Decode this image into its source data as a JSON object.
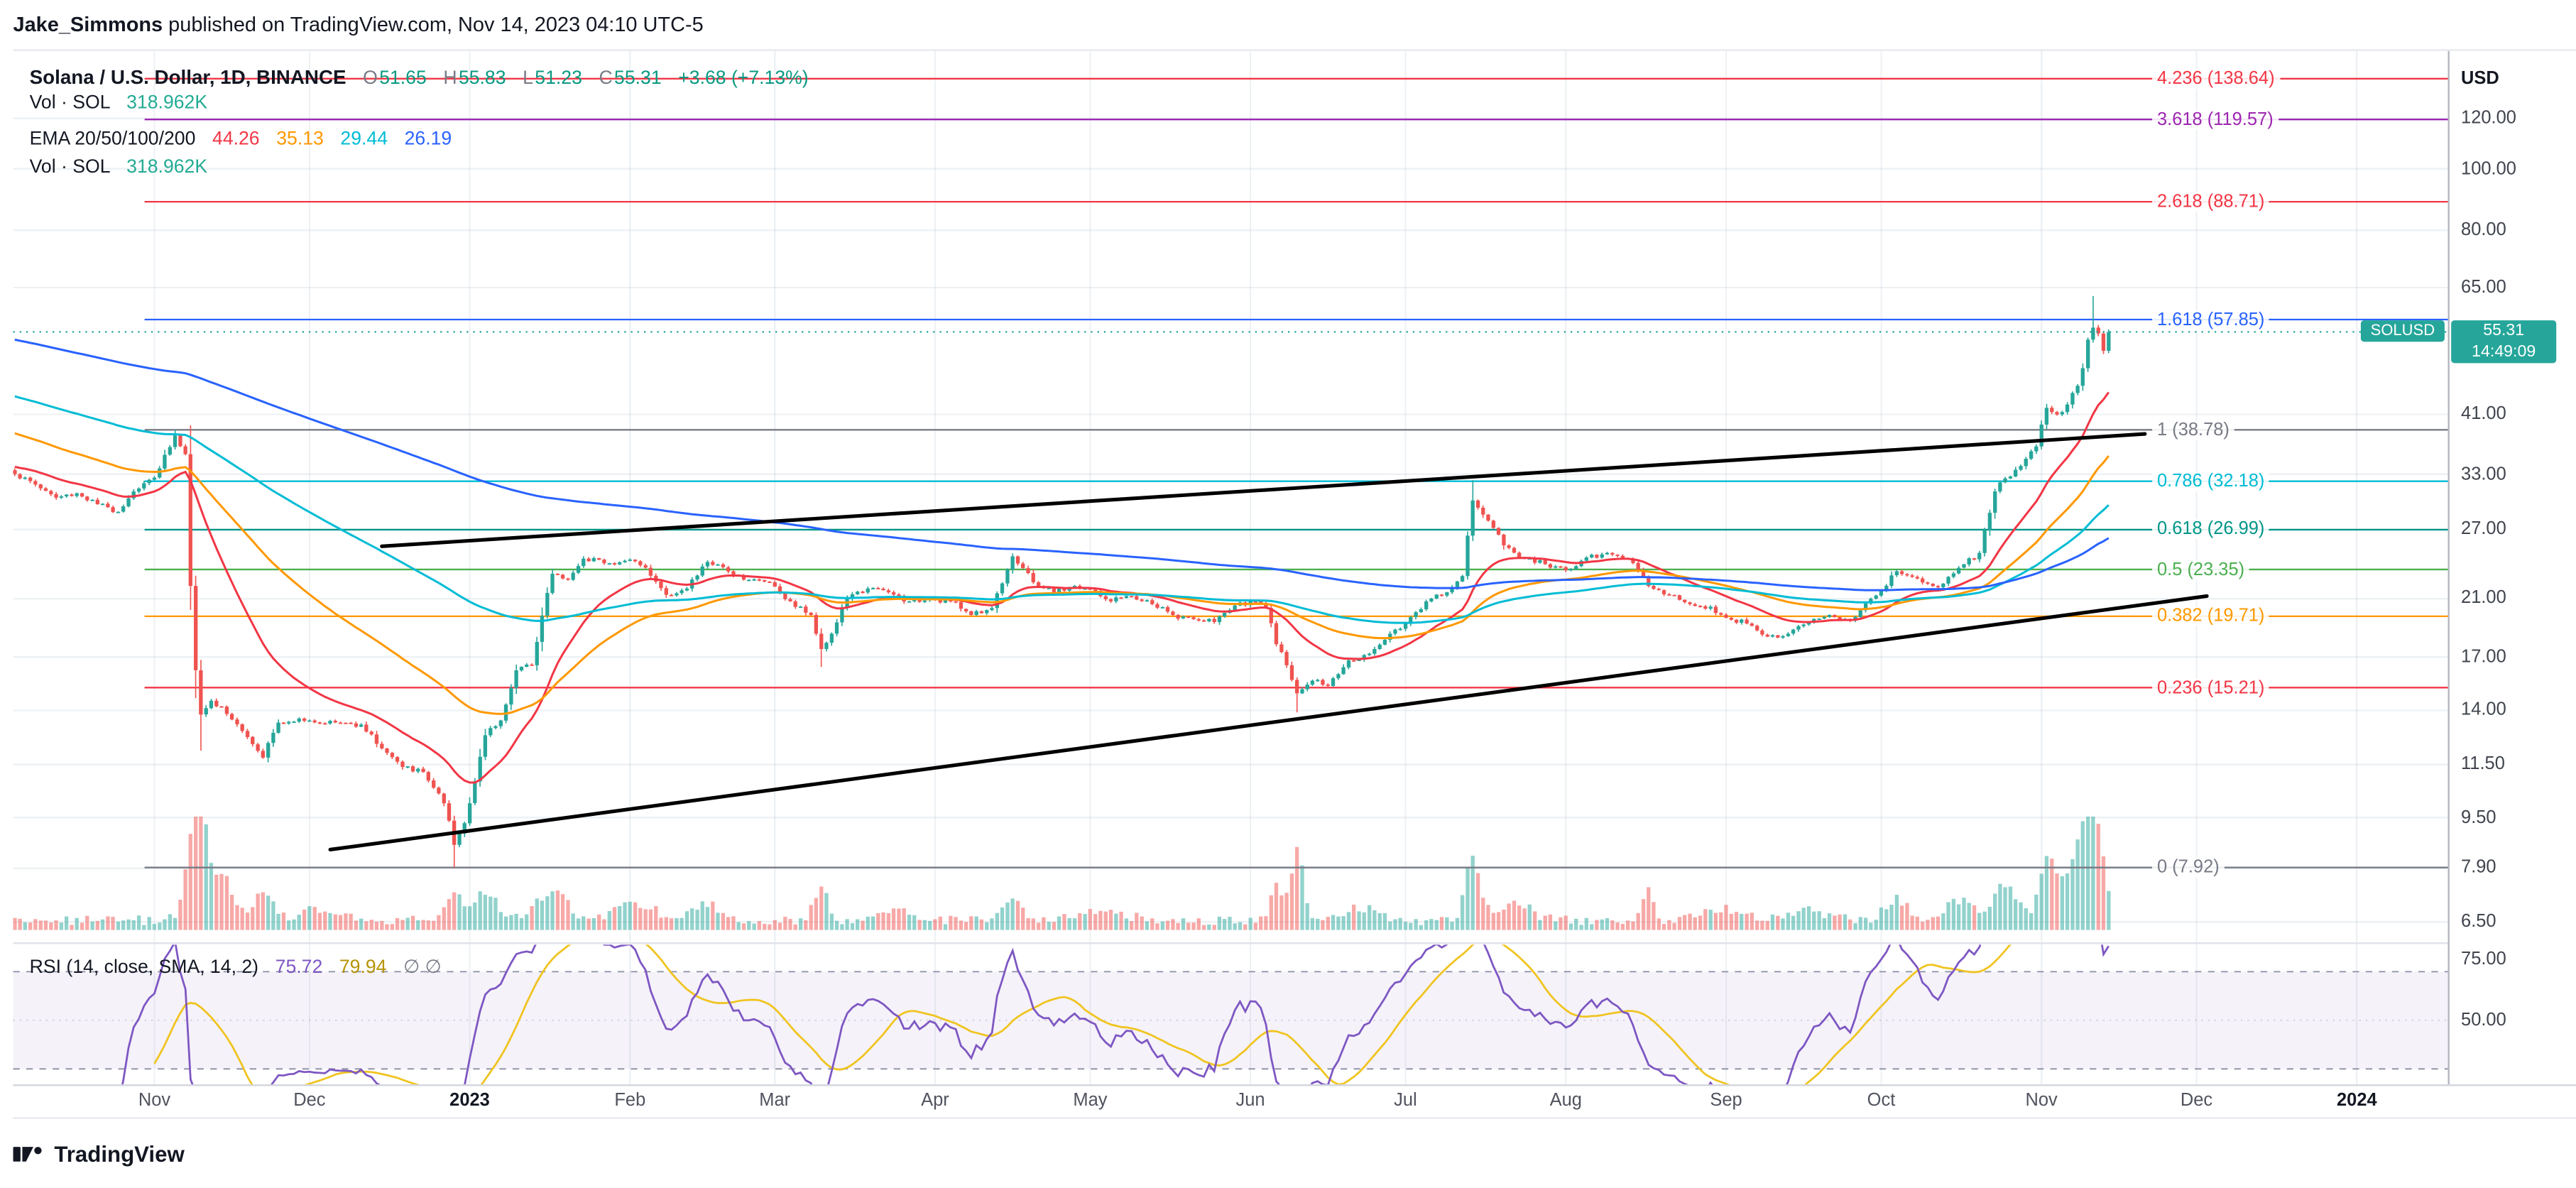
{
  "header": {
    "author": "Jake_Simmons",
    "rest": " published on TradingView.com, Nov 14, 2023 04:10 UTC-5"
  },
  "footer": {
    "brand": "TradingView"
  },
  "legend": {
    "symbol_row": {
      "title": "Solana / U.S. Dollar, 1D, BINANCE",
      "ohlc": [
        {
          "label": "O",
          "value": "51.65"
        },
        {
          "label": "H",
          "value": "55.83"
        },
        {
          "label": "L",
          "value": "51.23"
        },
        {
          "label": "C",
          "value": "55.31"
        }
      ],
      "change": "+3.68 (+7.13%)",
      "value_color": "#089981",
      "label_color": "#787b86"
    },
    "vol_row": {
      "label": "Vol · SOL",
      "value": "318.962K",
      "value_color": "#22ab94"
    },
    "ema_row": {
      "label": "EMA 20/50/100/200",
      "values": [
        "44.26",
        "35.13",
        "29.44",
        "26.19"
      ],
      "colors": [
        "#f23645",
        "#ff9800",
        "#00bcd4",
        "#2962ff"
      ]
    },
    "vol_row2": {
      "label": "Vol · SOL",
      "value": "318.962K",
      "value_color": "#22ab94"
    },
    "rsi_row": {
      "label": "RSI (14, close, SMA, 14, 2)",
      "value": "75.72",
      "sma_value": "79.94",
      "extra": "∅  ∅",
      "colors": [
        "#7e57c2",
        "#b59408"
      ]
    }
  },
  "price_axis": {
    "unit": "USD",
    "ticks": [
      {
        "label": "120.00",
        "value": 120
      },
      {
        "label": "100.00",
        "value": 100
      },
      {
        "label": "80.00",
        "value": 80
      },
      {
        "label": "65.00",
        "value": 65
      },
      {
        "label": "41.00",
        "value": 41
      },
      {
        "label": "33.00",
        "value": 33
      },
      {
        "label": "27.00",
        "value": 27
      },
      {
        "label": "21.00",
        "value": 21
      },
      {
        "label": "17.00",
        "value": 17
      },
      {
        "label": "14.00",
        "value": 14
      },
      {
        "label": "11.50",
        "value": 11.5
      },
      {
        "label": "9.50",
        "value": 9.5
      },
      {
        "label": "7.90",
        "value": 7.9
      },
      {
        "label": "6.50",
        "value": 6.5
      }
    ],
    "badge": {
      "symbol": "SOLUSD",
      "price": "55.31",
      "countdown": "14:49:09",
      "color": "#26a69a"
    }
  },
  "rsi_axis": {
    "ticks": [
      {
        "label": "75.00",
        "value": 75
      },
      {
        "label": "50.00",
        "value": 50
      }
    ]
  },
  "time_axis": {
    "labels": [
      {
        "text": "Nov",
        "day": 27,
        "year": false
      },
      {
        "text": "Dec",
        "day": 57,
        "year": false
      },
      {
        "text": "2023",
        "day": 88,
        "year": true
      },
      {
        "text": "Feb",
        "day": 119,
        "year": false
      },
      {
        "text": "Mar",
        "day": 147,
        "year": false
      },
      {
        "text": "Apr",
        "day": 178,
        "year": false
      },
      {
        "text": "May",
        "day": 208,
        "year": false
      },
      {
        "text": "Jun",
        "day": 239,
        "year": false
      },
      {
        "text": "Jul",
        "day": 269,
        "year": false
      },
      {
        "text": "Aug",
        "day": 300,
        "year": false
      },
      {
        "text": "Sep",
        "day": 331,
        "year": false
      },
      {
        "text": "Oct",
        "day": 361,
        "year": false
      },
      {
        "text": "Nov",
        "day": 392,
        "year": false
      },
      {
        "text": "Dec",
        "day": 422,
        "year": false
      },
      {
        "text": "2024",
        "day": 453,
        "year": true
      }
    ]
  },
  "chart_data": {
    "type": "candlestick",
    "symbol": "Solana / U.S. Dollar",
    "interval": "1D",
    "exchange": "BINANCE",
    "title": "Solana / U.S. Dollar, 1D, BINANCE",
    "last_price": 55.31,
    "last_bar": {
      "open": 51.65,
      "high": 55.83,
      "low": 51.23,
      "close": 55.31,
      "change": "+3.68 (+7.13%)",
      "volume": "318.962K"
    },
    "price_scale": {
      "type": "logarithmic",
      "visible_range": [
        6.2,
        145
      ]
    },
    "colors": {
      "up": "#26a69a",
      "down": "#ef5350",
      "vol_up": "rgba(38,166,154,0.5)",
      "vol_down": "rgba(239,83,80,0.5)",
      "grid": "rgba(150,165,185,0.16)",
      "last_price_line": "#26a69a",
      "rsi_band": "rgba(126,87,194,0.08)"
    },
    "ema": [
      {
        "period": 20,
        "color": "#f23645",
        "seed": 34,
        "last": 44.26
      },
      {
        "period": 50,
        "color": "#ff9800",
        "seed": 38.5,
        "last": 35.13
      },
      {
        "period": 100,
        "color": "#00bcd4",
        "seed": 44,
        "last": 29.44
      },
      {
        "period": 200,
        "color": "#2962ff",
        "seed": 54,
        "last": 26.19
      }
    ],
    "rsi": {
      "period": 14,
      "source": "close",
      "smoothing": 14,
      "color": "#7e57c2",
      "sma_color": "#f0c420",
      "upper_band": 70,
      "middle": 50,
      "lower_band": 30,
      "last": 75.72,
      "sma_last": 79.94
    },
    "fib_levels": [
      {
        "level": 4.236,
        "price": 138.64,
        "label": "4.236 (138.64)",
        "color": "#f23645"
      },
      {
        "level": 3.618,
        "price": 119.57,
        "label": "3.618 (119.57)",
        "color": "#9c27b0"
      },
      {
        "level": 2.618,
        "price": 88.71,
        "label": "2.618 (88.71)",
        "color": "#f23645"
      },
      {
        "level": 1.618,
        "price": 57.85,
        "label": "1.618 (57.85)",
        "color": "#2962ff"
      },
      {
        "level": 1,
        "price": 38.78,
        "label": "1 (38.78)",
        "color": "#787b86"
      },
      {
        "level": 0.786,
        "price": 32.18,
        "label": "0.786 (32.18)",
        "color": "#00bcd4"
      },
      {
        "level": 0.618,
        "price": 26.99,
        "label": "0.618 (26.99)",
        "color": "#009688"
      },
      {
        "level": 0.5,
        "price": 23.35,
        "label": "0.5 (23.35)",
        "color": "#4caf50"
      },
      {
        "level": 0.382,
        "price": 19.71,
        "label": "0.382 (19.71)",
        "color": "#ff9800"
      },
      {
        "level": 0.236,
        "price": 15.21,
        "label": "0.236 (15.21)",
        "color": "#f23645"
      },
      {
        "level": 0,
        "price": 7.92,
        "label": "0 (7.92)",
        "color": "#787b86"
      }
    ],
    "trend_lines": [
      {
        "from": {
          "day": 61,
          "price": 8.45
        },
        "to": {
          "day": 424,
          "price": 21.2
        },
        "color": "#000000",
        "width": 2.2
      },
      {
        "from": {
          "day": 71,
          "price": 25.4
        },
        "to": {
          "day": 412,
          "price": 38.2
        },
        "color": "#000000",
        "width": 2.2
      }
    ],
    "volume": {
      "events": [
        [
          34,
          0.6,
          2
        ],
        [
          36,
          1.0,
          1.8
        ],
        [
          40,
          0.45,
          3
        ],
        [
          48,
          0.25,
          3
        ],
        [
          60,
          0.12,
          6
        ],
        [
          85,
          0.3,
          2
        ],
        [
          91,
          0.28,
          3
        ],
        [
          104,
          0.3,
          4
        ],
        [
          120,
          0.18,
          5
        ],
        [
          134,
          0.15,
          4
        ],
        [
          156,
          0.3,
          2
        ],
        [
          170,
          0.12,
          5
        ],
        [
          193,
          0.25,
          2.5
        ],
        [
          210,
          0.1,
          6
        ],
        [
          244,
          0.4,
          1.5
        ],
        [
          248,
          0.7,
          1.8
        ],
        [
          260,
          0.12,
          5
        ],
        [
          282,
          0.65,
          2
        ],
        [
          290,
          0.2,
          4
        ],
        [
          316,
          0.3,
          1.5
        ],
        [
          330,
          0.12,
          6
        ],
        [
          347,
          0.1,
          5
        ],
        [
          364,
          0.22,
          3
        ],
        [
          376,
          0.2,
          4
        ],
        [
          385,
          0.38,
          3
        ],
        [
          393,
          0.55,
          2
        ],
        [
          397,
          0.4,
          3
        ],
        [
          400,
          0.75,
          2
        ],
        [
          402,
          0.9,
          1.5
        ],
        [
          404,
          0.5,
          1.5
        ]
      ]
    },
    "candles": {
      "days": 406,
      "close_anchors": [
        [
          0,
          33.0
        ],
        [
          4,
          31.8
        ],
        [
          8,
          30.3
        ],
        [
          12,
          30.8
        ],
        [
          16,
          29.6
        ],
        [
          20,
          28.8
        ],
        [
          23,
          31.0
        ],
        [
          27,
          32.6
        ],
        [
          31,
          38.0
        ],
        [
          33,
          35.5
        ],
        [
          34,
          22.0
        ],
        [
          35,
          16.2
        ],
        [
          36,
          13.8
        ],
        [
          38,
          14.5
        ],
        [
          40,
          14.2
        ],
        [
          44,
          13.0
        ],
        [
          48,
          11.8
        ],
        [
          51,
          13.4
        ],
        [
          55,
          13.6
        ],
        [
          57,
          13.5
        ],
        [
          62,
          13.4
        ],
        [
          67,
          13.3
        ],
        [
          71,
          12.2
        ],
        [
          75,
          11.4
        ],
        [
          79,
          11.2
        ],
        [
          83,
          10.0
        ],
        [
          85,
          8.6
        ],
        [
          87,
          9.3
        ],
        [
          88,
          10.0
        ],
        [
          91,
          12.8
        ],
        [
          94,
          13.5
        ],
        [
          97,
          16.2
        ],
        [
          100,
          16.5
        ],
        [
          104,
          23.0
        ],
        [
          107,
          22.5
        ],
        [
          110,
          24.3
        ],
        [
          113,
          24.2
        ],
        [
          116,
          23.8
        ],
        [
          119,
          24.2
        ],
        [
          122,
          23.5
        ],
        [
          126,
          21.3
        ],
        [
          130,
          21.8
        ],
        [
          134,
          24.0
        ],
        [
          138,
          23.2
        ],
        [
          142,
          22.5
        ],
        [
          146,
          22.3
        ],
        [
          150,
          20.8
        ],
        [
          154,
          19.8
        ],
        [
          156,
          17.5
        ],
        [
          158,
          18.5
        ],
        [
          161,
          21.0
        ],
        [
          165,
          21.8
        ],
        [
          169,
          21.5
        ],
        [
          173,
          20.8
        ],
        [
          177,
          21.0
        ],
        [
          181,
          20.8
        ],
        [
          185,
          19.8
        ],
        [
          189,
          20.3
        ],
        [
          193,
          24.5
        ],
        [
          197,
          22.3
        ],
        [
          201,
          21.5
        ],
        [
          205,
          22.0
        ],
        [
          208,
          21.7
        ],
        [
          212,
          20.8
        ],
        [
          216,
          21.2
        ],
        [
          220,
          20.6
        ],
        [
          224,
          19.8
        ],
        [
          228,
          19.5
        ],
        [
          232,
          19.3
        ],
        [
          236,
          20.5
        ],
        [
          239,
          20.8
        ],
        [
          242,
          20.3
        ],
        [
          244,
          17.8
        ],
        [
          246,
          16.5
        ],
        [
          248,
          14.9
        ],
        [
          251,
          15.6
        ],
        [
          254,
          15.3
        ],
        [
          258,
          16.8
        ],
        [
          262,
          17.2
        ],
        [
          266,
          18.5
        ],
        [
          269,
          19.2
        ],
        [
          273,
          20.8
        ],
        [
          277,
          21.5
        ],
        [
          280,
          22.8
        ],
        [
          282,
          30.0
        ],
        [
          284,
          28.5
        ],
        [
          287,
          26.5
        ],
        [
          288,
          25.5
        ],
        [
          292,
          24.3
        ],
        [
          296,
          23.8
        ],
        [
          300,
          23.3
        ],
        [
          304,
          24.4
        ],
        [
          308,
          24.8
        ],
        [
          312,
          24.3
        ],
        [
          316,
          22.0
        ],
        [
          320,
          21.3
        ],
        [
          324,
          20.6
        ],
        [
          328,
          20.4
        ],
        [
          331,
          19.6
        ],
        [
          335,
          19.2
        ],
        [
          339,
          18.3
        ],
        [
          343,
          18.5
        ],
        [
          347,
          19.3
        ],
        [
          351,
          19.8
        ],
        [
          355,
          19.4
        ],
        [
          359,
          21.0
        ],
        [
          361,
          21.6
        ],
        [
          364,
          23.2
        ],
        [
          368,
          22.6
        ],
        [
          372,
          21.9
        ],
        [
          376,
          23.5
        ],
        [
          380,
          24.8
        ],
        [
          383,
          31.0
        ],
        [
          385,
          32.5
        ],
        [
          388,
          34.0
        ],
        [
          391,
          36.5
        ],
        [
          393,
          42.0
        ],
        [
          395,
          41.0
        ],
        [
          397,
          42.5
        ],
        [
          399,
          45.5
        ],
        [
          400,
          48.5
        ],
        [
          401,
          53.8
        ],
        [
          402,
          56.2
        ],
        [
          403,
          55.0
        ],
        [
          404,
          51.65
        ],
        [
          405,
          55.31
        ]
      ],
      "overrides": {
        "31": {
          "h": 38.78
        },
        "36": {
          "l": 12.1
        },
        "85": {
          "l": 7.92
        },
        "156": {
          "l": 16.4
        },
        "248": {
          "l": 13.9
        },
        "282": {
          "h": 32.3
        },
        "402": {
          "h": 63.0
        },
        "405": {
          "o": 51.65,
          "h": 55.83,
          "l": 51.23,
          "c": 55.31
        }
      }
    }
  }
}
